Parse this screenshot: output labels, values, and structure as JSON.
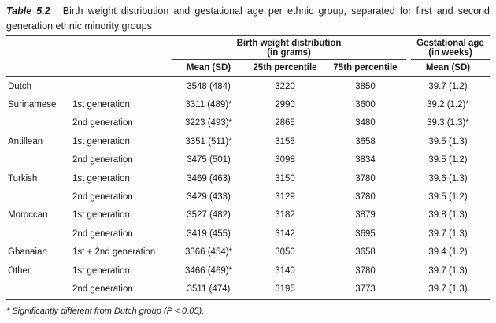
{
  "caption": {
    "label": "Table 5.2",
    "line1": "Birth weight distribution and gestational age per ethnic group, separated for first and second",
    "line2": "generation ethnic minority groups"
  },
  "header": {
    "group1": {
      "title": "Birth weight distribution",
      "subtitle": "(in grams)"
    },
    "group2": {
      "title": "Gestational age",
      "subtitle": "(in weeks)"
    },
    "columns": [
      "Mean (SD)",
      "25th percentile",
      "75th percentile",
      "Mean (SD)"
    ]
  },
  "rows": [
    {
      "group": "Dutch",
      "generation": "",
      "mean_sd": "3548 (484)",
      "p25": "3220",
      "p75": "3850",
      "ga_mean_sd": "39.7 (1.2)"
    },
    {
      "group": "Surinamese",
      "generation": "1st generation",
      "mean_sd": "3311 (489)*",
      "p25": "2990",
      "p75": "3600",
      "ga_mean_sd": "39.2 (1.2)*"
    },
    {
      "group": "",
      "generation": "2nd generation",
      "mean_sd": "3223 (493)*",
      "p25": "2865",
      "p75": "3480",
      "ga_mean_sd": "39.3 (1.3)*"
    },
    {
      "group": "Antillean",
      "generation": "1st generation",
      "mean_sd": "3351 (511)*",
      "p25": "3155",
      "p75": "3658",
      "ga_mean_sd": "39.5 (1.3)"
    },
    {
      "group": "",
      "generation": "2nd generation",
      "mean_sd": "3475 (501)",
      "p25": "3098",
      "p75": "3834",
      "ga_mean_sd": "39.5 (1.2)"
    },
    {
      "group": "Turkish",
      "generation": "1st generation",
      "mean_sd": "3469 (463)",
      "p25": "3150",
      "p75": "3780",
      "ga_mean_sd": "39.6 (1.3)"
    },
    {
      "group": "",
      "generation": "2nd generation",
      "mean_sd": "3429 (433)",
      "p25": "3129",
      "p75": "3780",
      "ga_mean_sd": "39.5 (1.2)"
    },
    {
      "group": "Moroccan",
      "generation": "1st generation",
      "mean_sd": "3527 (482)",
      "p25": "3182",
      "p75": "3879",
      "ga_mean_sd": "39.8 (1.3)"
    },
    {
      "group": "",
      "generation": "2nd generation",
      "mean_sd": "3419 (455)",
      "p25": "3142",
      "p75": "3695",
      "ga_mean_sd": "39.7 (1.3)"
    },
    {
      "group": "Ghanaian",
      "generation": "1st + 2nd generation",
      "mean_sd": "3366 (454)*",
      "p25": "3050",
      "p75": "3658",
      "ga_mean_sd": "39.4 (1.2)"
    },
    {
      "group": "Other",
      "generation": "1st generation",
      "mean_sd": "3466 (469)*",
      "p25": "3140",
      "p75": "3780",
      "ga_mean_sd": "39.7 (1.3)"
    },
    {
      "group": "",
      "generation": "2nd generation",
      "mean_sd": "3511 (474)",
      "p25": "3195",
      "p75": "3773",
      "ga_mean_sd": "39.7 (1.3)"
    }
  ],
  "footnote": {
    "text": "* Significantly different from Dutch group (P < 0.05)."
  }
}
